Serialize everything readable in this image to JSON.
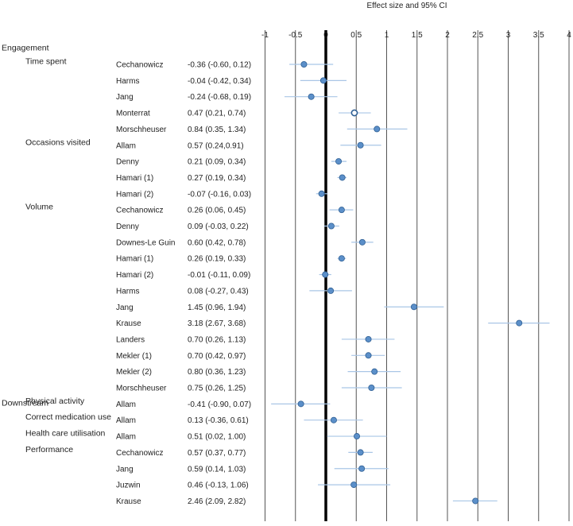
{
  "chart_data": {
    "type": "forest",
    "title": "Effect size and 95% CI",
    "xlim": [
      -1,
      4
    ],
    "ticks": [
      -1,
      -0.5,
      0,
      0.5,
      1,
      1.5,
      2,
      2.5,
      3,
      3.5,
      4
    ],
    "tick_labels": [
      "-1",
      "-0.5",
      "0",
      "0.5",
      "1",
      "1.5",
      "2",
      "2.5",
      "3",
      "3.5",
      "4"
    ],
    "reference_line": 0,
    "grid": "vertical",
    "sections": [
      {
        "name": "Engagement",
        "groups": [
          {
            "name": "Time spent",
            "studies": [
              {
                "study": "Cechanowicz",
                "ci_text": "-0.36 (-0.60, 0.12)",
                "est": -0.36,
                "lo": -0.6,
                "hi": 0.12
              },
              {
                "study": "Harms",
                "ci_text": "-0.04 (-0.42, 0.34)",
                "est": -0.04,
                "lo": -0.42,
                "hi": 0.34
              },
              {
                "study": "Jang",
                "ci_text": "-0.24 (-0.68, 0.19)",
                "est": -0.24,
                "lo": -0.68,
                "hi": 0.19
              },
              {
                "study": "Monterrat",
                "ci_text": "0.47 (0.21, 0.74)",
                "est": 0.47,
                "lo": 0.21,
                "hi": 0.74,
                "hollow": true
              },
              {
                "study": "Morschheuser",
                "ci_text": "0.84 (0.35, 1.34)",
                "est": 0.84,
                "lo": 0.35,
                "hi": 1.34
              }
            ]
          },
          {
            "name": "Occasions visited",
            "studies": [
              {
                "study": "Allam",
                "ci_text": "0.57 (0.24,0.91)",
                "est": 0.57,
                "lo": 0.24,
                "hi": 0.91
              },
              {
                "study": "Denny",
                "ci_text": "0.21 (0.09, 0.34)",
                "est": 0.21,
                "lo": 0.09,
                "hi": 0.34
              },
              {
                "study": "Hamari (1)",
                "ci_text": "0.27 (0.19, 0.34)",
                "est": 0.27,
                "lo": 0.19,
                "hi": 0.34
              },
              {
                "study": "Hamari (2)",
                "ci_text": "-0.07 (-0.16, 0.03)",
                "est": -0.07,
                "lo": -0.16,
                "hi": 0.03
              }
            ]
          },
          {
            "name": "Volume",
            "studies": [
              {
                "study": "Cechanowicz",
                "ci_text": "0.26 (0.06, 0.45)",
                "est": 0.26,
                "lo": 0.06,
                "hi": 0.45
              },
              {
                "study": "Denny",
                "ci_text": "0.09 (-0.03, 0.22)",
                "est": 0.09,
                "lo": -0.03,
                "hi": 0.22
              },
              {
                "study": "Downes-Le Guin",
                "ci_text": "0.60 (0.42, 0.78)",
                "est": 0.6,
                "lo": 0.42,
                "hi": 0.78
              },
              {
                "study": "Hamari (1)",
                "ci_text": "0.26 (0.19, 0.33)",
                "est": 0.26,
                "lo": 0.19,
                "hi": 0.33
              },
              {
                "study": "Hamari (2)",
                "ci_text": "-0.01 (-0.11, 0.09)",
                "est": -0.01,
                "lo": -0.11,
                "hi": 0.09
              },
              {
                "study": "Harms",
                "ci_text": "0.08 (-0.27, 0.43)",
                "est": 0.08,
                "lo": -0.27,
                "hi": 0.43
              },
              {
                "study": "Jang",
                "ci_text": "1.45 (0.96, 1.94)",
                "est": 1.45,
                "lo": 0.96,
                "hi": 1.94
              },
              {
                "study": "Krause",
                "ci_text": "3.18 (2.67, 3.68)",
                "est": 3.18,
                "lo": 2.67,
                "hi": 3.68
              },
              {
                "study": "Landers",
                "ci_text": "0.70 (0.26, 1.13)",
                "est": 0.7,
                "lo": 0.26,
                "hi": 1.13
              },
              {
                "study": "Mekler (1)",
                "ci_text": "0.70 (0.42, 0.97)",
                "est": 0.7,
                "lo": 0.42,
                "hi": 0.97
              },
              {
                "study": "Mekler (2)",
                "ci_text": "0.80 (0.36, 1.23)",
                "est": 0.8,
                "lo": 0.36,
                "hi": 1.23
              },
              {
                "study": "Morschheuser",
                "ci_text": "0.75 (0.26, 1.25)",
                "est": 0.75,
                "lo": 0.26,
                "hi": 1.25
              }
            ]
          }
        ]
      },
      {
        "name": "Downstream",
        "groups": [
          {
            "name": "Physical activity",
            "studies": [
              {
                "study": "Allam",
                "ci_text": "-0.41 (-0.90, 0.07)",
                "est": -0.41,
                "lo": -0.9,
                "hi": 0.07
              }
            ]
          },
          {
            "name": "Correct medication use",
            "studies": [
              {
                "study": "Allam",
                "ci_text": "0.13 (-0.36, 0.61)",
                "est": 0.13,
                "lo": -0.36,
                "hi": 0.61
              }
            ]
          },
          {
            "name": "Health care utilisation",
            "studies": [
              {
                "study": "Allam",
                "ci_text": "0.51 (0.02, 1.00)",
                "est": 0.51,
                "lo": 0.02,
                "hi": 1.0
              }
            ]
          },
          {
            "name": "Performance",
            "studies": [
              {
                "study": "Cechanowicz",
                "ci_text": "0.57 (0.37, 0.77)",
                "est": 0.57,
                "lo": 0.37,
                "hi": 0.77
              },
              {
                "study": "Jang",
                "ci_text": "0.59 (0.14, 1.03)",
                "est": 0.59,
                "lo": 0.14,
                "hi": 1.03
              },
              {
                "study": "Juzwin",
                "ci_text": "0.46 (-0.13, 1.06)",
                "est": 0.46,
                "lo": -0.13,
                "hi": 1.06
              },
              {
                "study": "Krause",
                "ci_text": "2.46 (2.09, 2.82)",
                "est": 2.46,
                "lo": 2.09,
                "hi": 2.82
              }
            ]
          }
        ]
      }
    ],
    "colors": {
      "marker_fill": "#5b8fc9",
      "marker_stroke": "#2f5f93",
      "ci_line": "#a9c6e6",
      "grid": "#555555",
      "zero_line": "#000000"
    }
  }
}
